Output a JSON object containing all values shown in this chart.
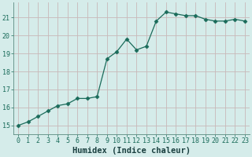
{
  "xlabel": "Humidex (Indice chaleur)",
  "ylabel": "",
  "x_values": [
    0,
    1,
    2,
    3,
    4,
    5,
    6,
    7,
    8,
    9,
    10,
    11,
    12,
    13,
    14,
    15,
    16,
    17,
    18,
    19,
    20,
    21,
    22,
    23
  ],
  "y_values": [
    15.0,
    15.2,
    15.5,
    15.8,
    16.1,
    16.2,
    16.5,
    16.5,
    16.6,
    18.7,
    19.1,
    19.8,
    19.2,
    19.4,
    20.8,
    21.3,
    21.2,
    21.1,
    21.1,
    20.9,
    20.8,
    20.8,
    20.9,
    20.8
  ],
  "line_color": "#1a6b5a",
  "marker": "D",
  "marker_size": 2.5,
  "bg_color": "#d5ecea",
  "plot_bg_color": "#d5ecea",
  "grid_color": "#c8b8b8",
  "tick_color": "#1a6b5a",
  "label_color": "#1a4040",
  "ylim": [
    14.5,
    21.85
  ],
  "xlim": [
    -0.5,
    23.5
  ],
  "yticks": [
    15,
    16,
    17,
    18,
    19,
    20,
    21
  ],
  "xticks": [
    0,
    1,
    2,
    3,
    4,
    5,
    6,
    7,
    8,
    9,
    10,
    11,
    12,
    13,
    14,
    15,
    16,
    17,
    18,
    19,
    20,
    21,
    22,
    23
  ],
  "tick_fontsize": 6,
  "label_fontsize": 7.5
}
